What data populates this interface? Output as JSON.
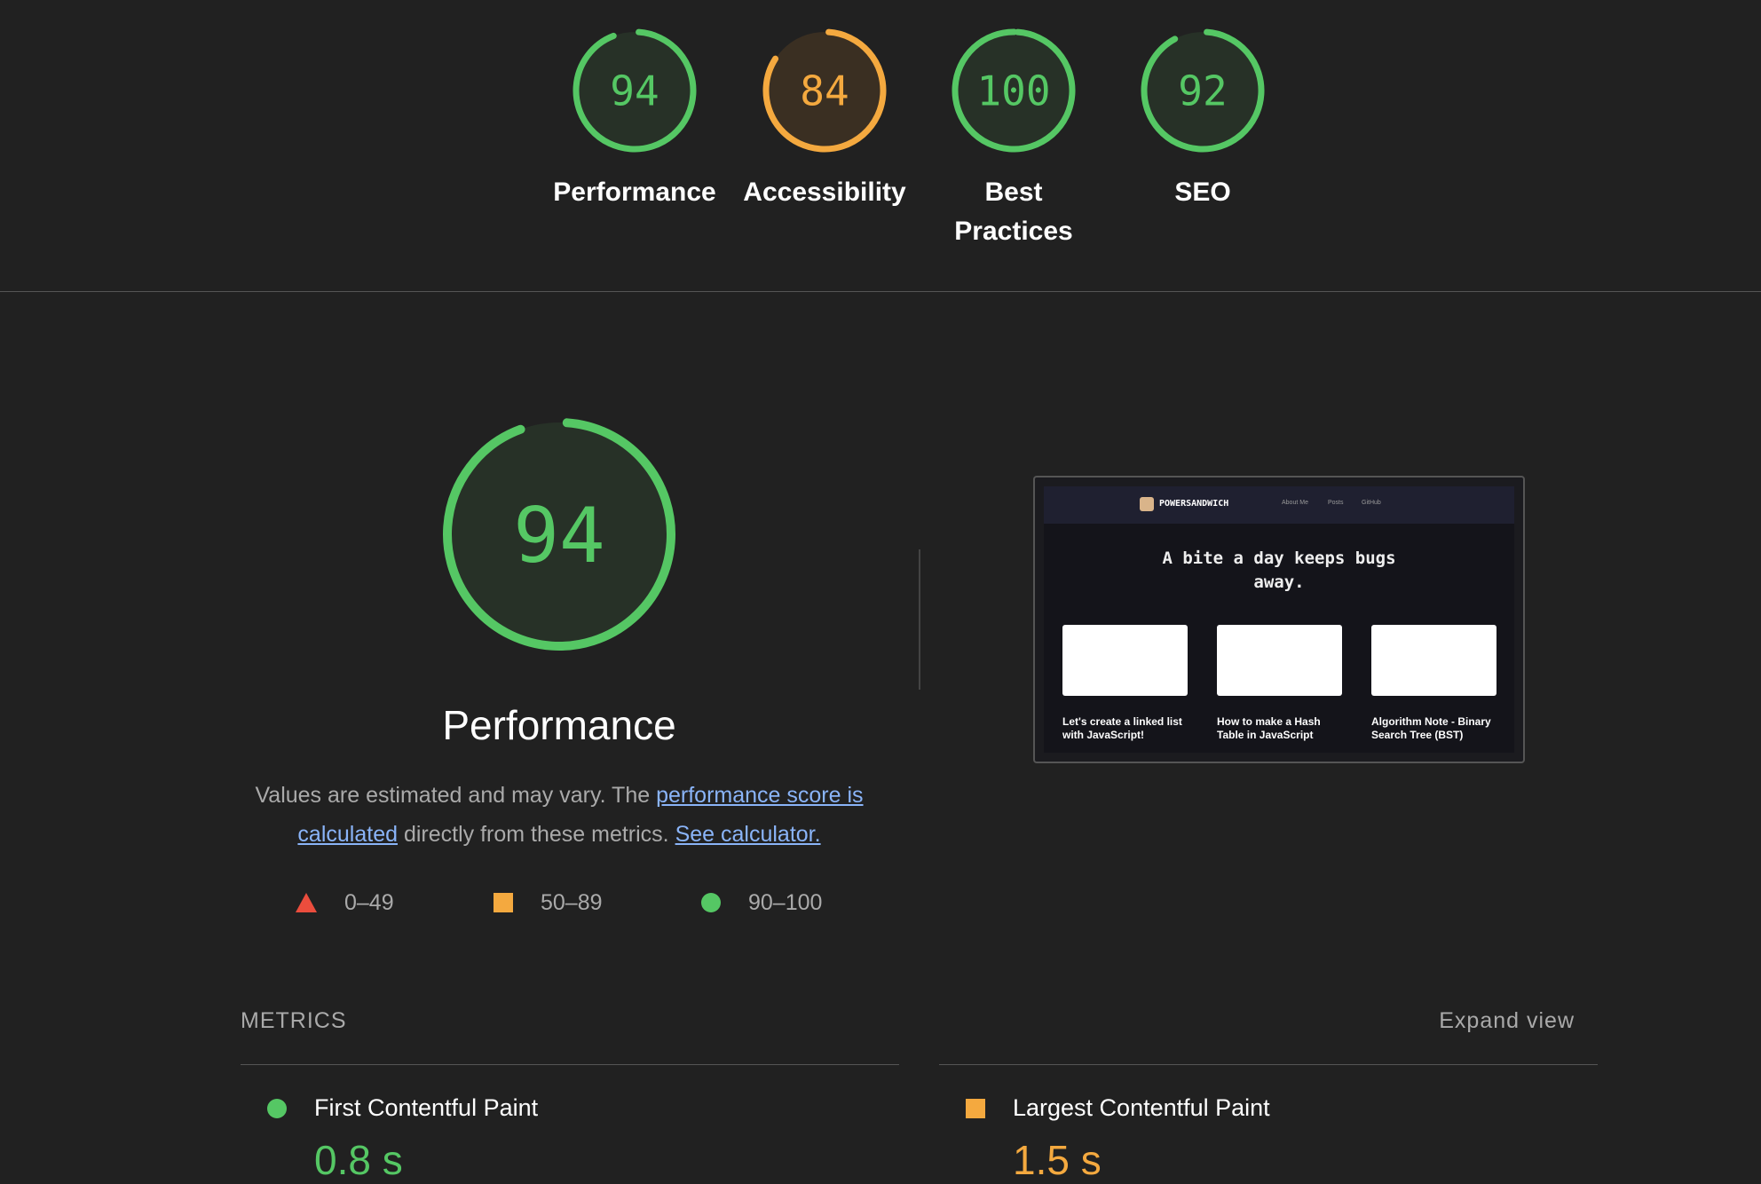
{
  "gauges": [
    {
      "score": 94,
      "label": "Performance",
      "color": "#55c764"
    },
    {
      "score": 84,
      "label": "Accessibility",
      "color": "#f4a93f"
    },
    {
      "score": 100,
      "label": "Best Practices",
      "color": "#55c764"
    },
    {
      "score": 92,
      "label": "SEO",
      "color": "#55c764"
    }
  ],
  "main": {
    "score": 94,
    "title": "Performance",
    "color": "#55c764",
    "description": {
      "text1": "Values are estimated and may vary. The ",
      "link1": "performance score is calculated",
      "text2": " directly from these metrics. ",
      "link2": "See calculator."
    },
    "legend": [
      "0–49",
      "50–89",
      "90–100"
    ]
  },
  "screenshot": {
    "brand": "POWERSANDWICH",
    "nav": [
      "About Me",
      "Posts",
      "GitHub"
    ],
    "headline": "A bite a day keeps bugs away.",
    "cards": [
      "Let's create a linked list with JavaScript!",
      "How to make a Hash Table in JavaScript",
      "Algorithm Note - Binary Search Tree (BST)"
    ]
  },
  "metrics": {
    "header": "METRICS",
    "expand": "Expand view",
    "items": [
      {
        "name": "First Contentful Paint",
        "value": "0.8 s",
        "color": "#55c764"
      },
      {
        "name": "Largest Contentful Paint",
        "value": "1.5 s",
        "color": "#f4a93f"
      }
    ]
  }
}
